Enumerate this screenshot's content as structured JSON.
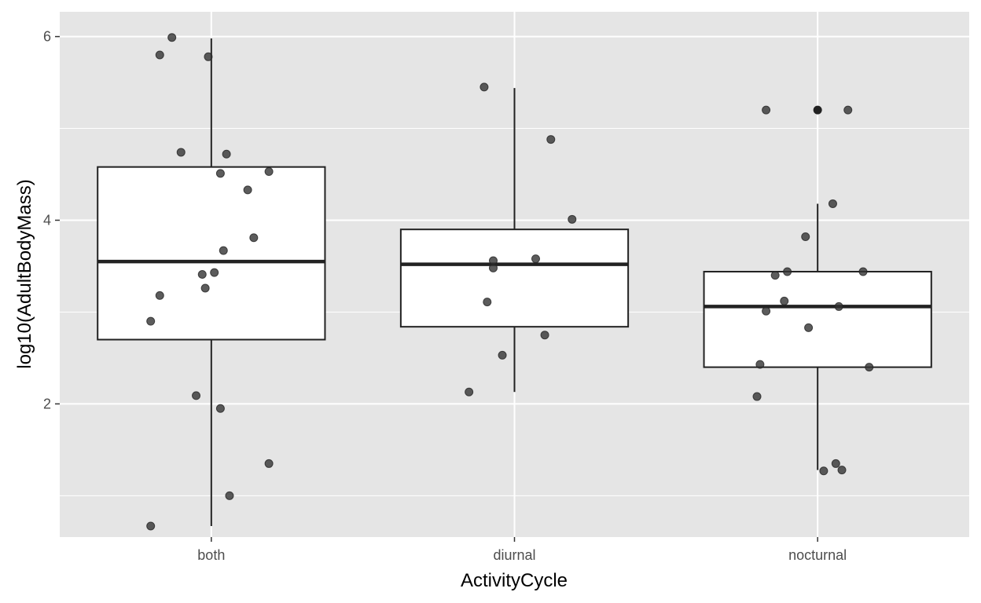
{
  "chart_data": {
    "type": "boxplot",
    "xlabel": "ActivityCycle",
    "ylabel": "log10(AdultBodyMass)",
    "categories": [
      "both",
      "diurnal",
      "nocturnal"
    ],
    "ylim": [
      0.55,
      6.27
    ],
    "yticks": [
      2,
      4,
      6
    ],
    "grid": true,
    "colors": {
      "panel": "#e5e5e5",
      "grid": "#ffffff",
      "box_fill": "#ffffff",
      "box_stroke": "#222222",
      "point": "#333333"
    },
    "boxes": [
      {
        "category": "both",
        "whisker_low": 0.67,
        "q1": 2.7,
        "median": 3.55,
        "q3": 4.58,
        "whisker_high": 5.98
      },
      {
        "category": "diurnal",
        "whisker_low": 2.13,
        "q1": 2.84,
        "median": 3.52,
        "q3": 3.9,
        "whisker_high": 5.44
      },
      {
        "category": "nocturnal",
        "whisker_low": 1.28,
        "q1": 2.4,
        "median": 3.06,
        "q3": 3.44,
        "whisker_high": 4.18
      }
    ],
    "outliers": [
      {
        "category": "nocturnal",
        "y": 5.2
      }
    ],
    "points": [
      {
        "category": "both",
        "offset": -0.13,
        "y": 5.99
      },
      {
        "category": "both",
        "offset": -0.17,
        "y": 5.8
      },
      {
        "category": "both",
        "offset": -0.01,
        "y": 5.78
      },
      {
        "category": "both",
        "offset": -0.1,
        "y": 4.74
      },
      {
        "category": "both",
        "offset": 0.05,
        "y": 4.72
      },
      {
        "category": "both",
        "offset": 0.03,
        "y": 4.51
      },
      {
        "category": "both",
        "offset": 0.19,
        "y": 4.53
      },
      {
        "category": "both",
        "offset": 0.12,
        "y": 4.33
      },
      {
        "category": "both",
        "offset": 0.14,
        "y": 3.81
      },
      {
        "category": "both",
        "offset": 0.04,
        "y": 3.67
      },
      {
        "category": "both",
        "offset": 0.01,
        "y": 3.43
      },
      {
        "category": "both",
        "offset": -0.03,
        "y": 3.41
      },
      {
        "category": "both",
        "offset": -0.02,
        "y": 3.26
      },
      {
        "category": "both",
        "offset": -0.17,
        "y": 3.18
      },
      {
        "category": "both",
        "offset": -0.2,
        "y": 2.9
      },
      {
        "category": "both",
        "offset": -0.05,
        "y": 2.09
      },
      {
        "category": "both",
        "offset": 0.03,
        "y": 1.95
      },
      {
        "category": "both",
        "offset": 0.19,
        "y": 1.35
      },
      {
        "category": "both",
        "offset": 0.06,
        "y": 1.0
      },
      {
        "category": "both",
        "offset": -0.2,
        "y": 0.67
      },
      {
        "category": "diurnal",
        "offset": -0.1,
        "y": 5.45
      },
      {
        "category": "diurnal",
        "offset": 0.12,
        "y": 4.88
      },
      {
        "category": "diurnal",
        "offset": 0.19,
        "y": 4.01
      },
      {
        "category": "diurnal",
        "offset": -0.07,
        "y": 3.56
      },
      {
        "category": "diurnal",
        "offset": 0.07,
        "y": 3.58
      },
      {
        "category": "diurnal",
        "offset": -0.07,
        "y": 3.48
      },
      {
        "category": "diurnal",
        "offset": -0.09,
        "y": 3.11
      },
      {
        "category": "diurnal",
        "offset": 0.1,
        "y": 2.75
      },
      {
        "category": "diurnal",
        "offset": -0.04,
        "y": 2.53
      },
      {
        "category": "diurnal",
        "offset": -0.15,
        "y": 2.13
      },
      {
        "category": "nocturnal",
        "offset": -0.17,
        "y": 5.2
      },
      {
        "category": "nocturnal",
        "offset": 0.1,
        "y": 5.2
      },
      {
        "category": "nocturnal",
        "offset": 0.05,
        "y": 4.18
      },
      {
        "category": "nocturnal",
        "offset": -0.04,
        "y": 3.82
      },
      {
        "category": "nocturnal",
        "offset": -0.1,
        "y": 3.44
      },
      {
        "category": "nocturnal",
        "offset": 0.15,
        "y": 3.44
      },
      {
        "category": "nocturnal",
        "offset": -0.14,
        "y": 3.4
      },
      {
        "category": "nocturnal",
        "offset": -0.11,
        "y": 3.12
      },
      {
        "category": "nocturnal",
        "offset": 0.07,
        "y": 3.06
      },
      {
        "category": "nocturnal",
        "offset": -0.17,
        "y": 3.01
      },
      {
        "category": "nocturnal",
        "offset": -0.03,
        "y": 2.83
      },
      {
        "category": "nocturnal",
        "offset": -0.19,
        "y": 2.43
      },
      {
        "category": "nocturnal",
        "offset": 0.17,
        "y": 2.4
      },
      {
        "category": "nocturnal",
        "offset": -0.2,
        "y": 2.08
      },
      {
        "category": "nocturnal",
        "offset": 0.06,
        "y": 1.35
      },
      {
        "category": "nocturnal",
        "offset": 0.08,
        "y": 1.28
      },
      {
        "category": "nocturnal",
        "offset": 0.02,
        "y": 1.27
      }
    ]
  }
}
